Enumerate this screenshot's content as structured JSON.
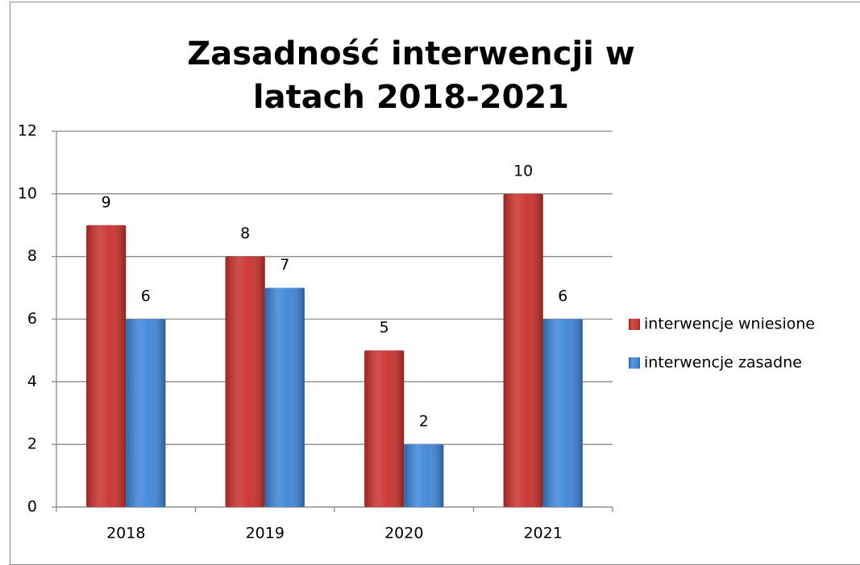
{
  "chart_data": {
    "type": "bar",
    "title": "Zasadność interwencji w latach 2018-2021",
    "categories": [
      "2018",
      "2019",
      "2020",
      "2021"
    ],
    "series": [
      {
        "name": "interwencje wniesione",
        "color": "#c9302c",
        "values": [
          9,
          8,
          5,
          10
        ]
      },
      {
        "name": "interwencje zasadne",
        "color": "#3d85d8",
        "values": [
          6,
          7,
          2,
          6
        ]
      }
    ],
    "ylim": [
      0,
      12
    ],
    "yticks": [
      0,
      2,
      4,
      6,
      8,
      10,
      12
    ],
    "grid": true,
    "legend": "right"
  }
}
